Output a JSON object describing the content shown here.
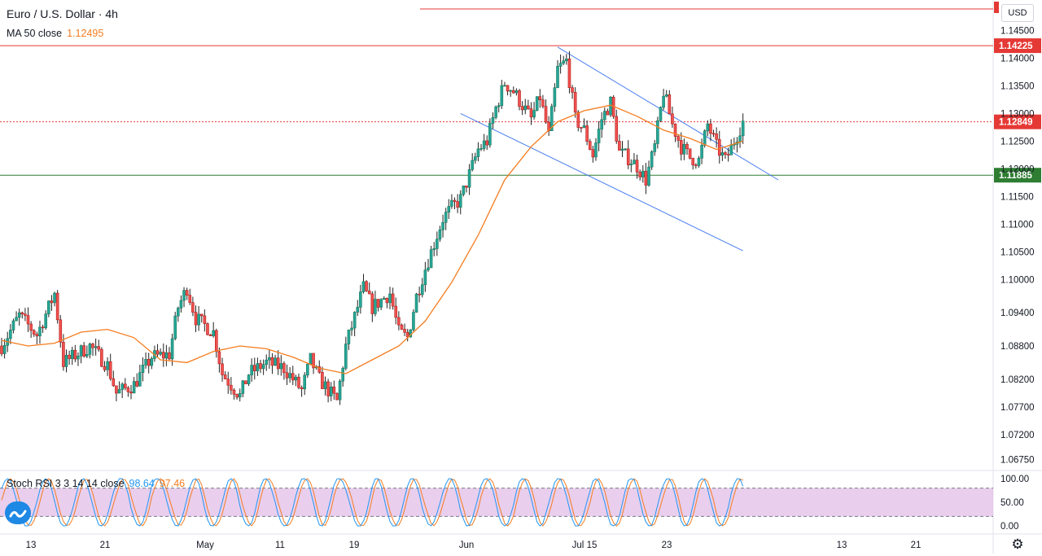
{
  "header": {
    "symbol_label": "Euro / U.S. Dollar · 4h",
    "ma_label": "MA 50 close",
    "ma_value": "1.12495",
    "currency": "USD"
  },
  "oscillator": {
    "label": "Stoch RSI 3 3 14 14 close",
    "k_value": "98.64",
    "d_value": "97.46",
    "ticks": [
      "100.00",
      "50.00",
      "0.00"
    ]
  },
  "price_axis": {
    "ticks": [
      "1.14500",
      "1.14000",
      "1.13500",
      "1.13000",
      "1.12500",
      "1.12000",
      "1.11500",
      "1.11000",
      "1.10500",
      "1.10000",
      "1.09400",
      "1.08800",
      "1.08200",
      "1.07700",
      "1.07200",
      "1.06750"
    ],
    "tick_values": [
      1.145,
      1.14,
      1.135,
      1.13,
      1.125,
      1.12,
      1.115,
      1.11,
      1.105,
      1.1,
      1.094,
      1.088,
      1.082,
      1.077,
      1.072,
      1.0675
    ]
  },
  "time_axis": {
    "ticks": [
      "13",
      "21",
      "May",
      "11",
      "19",
      "Jun",
      "15",
      "23",
      "Jul",
      "13",
      "21"
    ]
  },
  "colors": {
    "up": "#26a69a",
    "down": "#ef5350",
    "ma": "#f57c1f",
    "channel": "#2962ff",
    "resistance": "#e53935",
    "support": "#2e7d32",
    "current": "#e53935",
    "rsi_k": "#2196f3",
    "rsi_d": "#f57c1f",
    "rsi_band": "#e1bee7"
  },
  "chart_data": {
    "type": "candlestick",
    "symbol": "Euro / U.S. Dollar",
    "interval": "4h",
    "x_start": "Apr 10",
    "x_end": "Jul 3",
    "ylim": [
      1.0655,
      1.1505
    ],
    "levels": [
      {
        "name": "resistance",
        "value": 1.14225,
        "label": "1.14225"
      },
      {
        "name": "current",
        "value": 1.12849,
        "label": "1.12849"
      },
      {
        "name": "support",
        "value": 1.11885,
        "label": "1.11885"
      }
    ],
    "upper_channel": {
      "from": [
        "Jun 12",
        1.142
      ],
      "to": [
        "Jul 7",
        1.118
      ]
    },
    "lower_channel": {
      "from": [
        "Jun 1",
        1.13
      ],
      "to": [
        "Jul 3",
        1.1052
      ]
    },
    "close_path": [
      [
        "Apr 10",
        1.088
      ],
      [
        "Apr 12",
        1.0935
      ],
      [
        "Apr 14",
        1.09
      ],
      [
        "Apr 16",
        1.0975
      ],
      [
        "Apr 17",
        1.085
      ],
      [
        "Apr 20",
        1.088
      ],
      [
        "Apr 22",
        1.0845
      ],
      [
        "Apr 23",
        1.0795
      ],
      [
        "Apr 25",
        1.081
      ],
      [
        "Apr 27",
        1.086
      ],
      [
        "Apr 29",
        1.0865
      ],
      [
        "Apr 30",
        1.095
      ],
      [
        "May 1",
        1.0985
      ],
      [
        "May 2",
        1.093
      ],
      [
        "May 4",
        1.0905
      ],
      [
        "May 5",
        1.083
      ],
      [
        "May 7",
        1.079
      ],
      [
        "May 8",
        1.083
      ],
      [
        "May 10",
        1.085
      ],
      [
        "May 12",
        1.084
      ],
      [
        "May 14",
        1.08
      ],
      [
        "May 15",
        1.0855
      ],
      [
        "May 16",
        1.082
      ],
      [
        "May 18",
        1.078
      ],
      [
        "May 19",
        1.088
      ],
      [
        "May 21",
        1.0985
      ],
      [
        "May 22",
        1.095
      ],
      [
        "May 24",
        1.0975
      ],
      [
        "May 25",
        1.0905
      ],
      [
        "May 26",
        1.0895
      ],
      [
        "May 27",
        1.097
      ],
      [
        "May 28",
        1.102
      ],
      [
        "May 30",
        1.111
      ],
      [
        "May 31",
        1.113
      ],
      [
        "Jun 1",
        1.1145
      ],
      [
        "Jun 3",
        1.1235
      ],
      [
        "Jun 4",
        1.125
      ],
      [
        "Jun 5",
        1.131
      ],
      [
        "Jun 6",
        1.1355
      ],
      [
        "Jun 7",
        1.134
      ],
      [
        "Jun 9",
        1.129
      ],
      [
        "Jun 10",
        1.133
      ],
      [
        "Jun 11",
        1.126
      ],
      [
        "Jun 12",
        1.138
      ],
      [
        "Jun 13",
        1.1395
      ],
      [
        "Jun 14",
        1.129
      ],
      [
        "Jun 15",
        1.127
      ],
      [
        "Jun 16",
        1.1225
      ],
      [
        "Jun 17",
        1.129
      ],
      [
        "Jun 18",
        1.132
      ],
      [
        "Jun 19",
        1.123
      ],
      [
        "Jun 20",
        1.122
      ],
      [
        "Jun 21",
        1.1205
      ],
      [
        "Jun 22",
        1.118
      ],
      [
        "Jun 23",
        1.124
      ],
      [
        "Jun 24",
        1.134
      ],
      [
        "Jun 25",
        1.128
      ],
      [
        "Jun 26",
        1.124
      ],
      [
        "Jun 27",
        1.122
      ],
      [
        "Jun 28",
        1.1215
      ],
      [
        "Jun 29",
        1.128
      ],
      [
        "Jun 30",
        1.124
      ],
      [
        "Jul 1",
        1.1215
      ],
      [
        "Jul 2",
        1.125
      ],
      [
        "Jul 3",
        1.1285
      ]
    ],
    "ma_path": [
      [
        "Apr 10",
        1.089
      ],
      [
        "Apr 13",
        1.088
      ],
      [
        "Apr 16",
        1.0885
      ],
      [
        "Apr 19",
        1.0905
      ],
      [
        "Apr 22",
        1.091
      ],
      [
        "Apr 25",
        1.0895
      ],
      [
        "Apr 28",
        1.0855
      ],
      [
        "May 1",
        1.085
      ],
      [
        "May 4",
        1.087
      ],
      [
        "May 7",
        1.088
      ],
      [
        "May 10",
        1.0875
      ],
      [
        "May 13",
        1.086
      ],
      [
        "May 16",
        1.084
      ],
      [
        "May 19",
        1.083
      ],
      [
        "May 22",
        1.0855
      ],
      [
        "May 25",
        1.088
      ],
      [
        "May 28",
        1.0925
      ],
      [
        "May 31",
        1.0995
      ],
      [
        "Jun 3",
        1.108
      ],
      [
        "Jun 6",
        1.118
      ],
      [
        "Jun 9",
        1.124
      ],
      [
        "Jun 12",
        1.1285
      ],
      [
        "Jun 15",
        1.1305
      ],
      [
        "Jun 18",
        1.1315
      ],
      [
        "Jun 21",
        1.1295
      ],
      [
        "Jun 24",
        1.127
      ],
      [
        "Jun 27",
        1.1255
      ],
      [
        "Jun 30",
        1.1235
      ],
      [
        "Jul 3",
        1.125
      ]
    ]
  }
}
